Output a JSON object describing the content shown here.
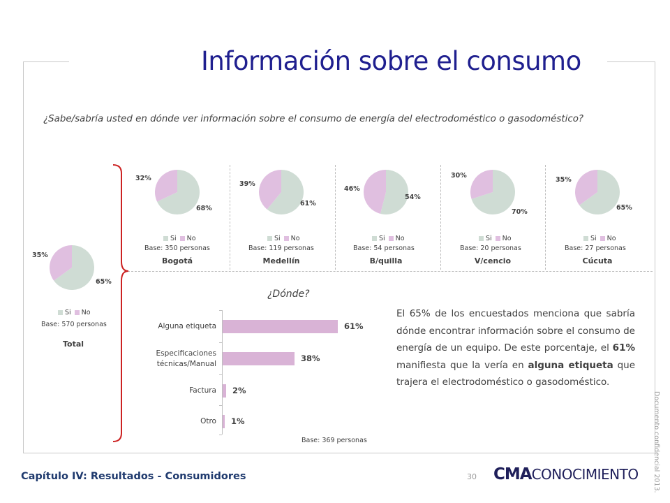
{
  "title": "Información sobre el consumo",
  "question": "¿Sabe/sabría usted en dónde ver información sobre el consumo de energía del electrodoméstico o gasodoméstico?",
  "colors": {
    "si": "#cfdcd4",
    "no": "#e0bfe0",
    "bar": "#d9b3d6",
    "title": "#1f1f8f",
    "bracket": "#cc2222"
  },
  "legend": {
    "si": "Si",
    "no": "No"
  },
  "pies": [
    {
      "si_pct": "68%",
      "no_pct": "32%",
      "si": 68,
      "no": 32,
      "base": "Base: 350 personas",
      "city": "Bogotá"
    },
    {
      "si_pct": "61%",
      "no_pct": "39%",
      "si": 61,
      "no": 39,
      "base": "Base: 119 personas",
      "city": "Medellín"
    },
    {
      "si_pct": "54%",
      "no_pct": "46%",
      "si": 54,
      "no": 46,
      "base": "Base: 54 personas",
      "city": "B/quilla"
    },
    {
      "si_pct": "70%",
      "no_pct": "30%",
      "si": 70,
      "no": 30,
      "base": "Base: 20 personas",
      "city": "V/cencio"
    },
    {
      "si_pct": "65%",
      "no_pct": "35%",
      "si": 65,
      "no": 35,
      "base": "Base: 27 personas",
      "city": "Cúcuta"
    }
  ],
  "total": {
    "si_pct": "65%",
    "no_pct": "35%",
    "si": 65,
    "no": 35,
    "base": "Base: 570 personas",
    "city": "Total"
  },
  "donde_title": "¿Dónde?",
  "chart_data": {
    "type": "bar",
    "orientation": "horizontal",
    "categories": [
      "Alguna etiqueta",
      "Especificaciones técnicas/Manual",
      "Factura",
      "Otro"
    ],
    "values": [
      61,
      38,
      2,
      1
    ],
    "labels": [
      "61%",
      "38%",
      "2%",
      "1%"
    ],
    "xlim": [
      0,
      100
    ],
    "base": "Base: 369 personas"
  },
  "paragraph": {
    "p1": "El 65% de los encuestados menciona que sabría dónde encontrar información sobre el consumo de energía de un equipo. De este porcentaje, el ",
    "b1": "61%",
    "p2": " manifiesta que la vería en ",
    "b2": "alguna etiqueta",
    "p3": " que trajera el electrodoméstico o gasodoméstico."
  },
  "footer": {
    "chapter": "Capítulo IV: Resultados - Consumidores",
    "page": "30",
    "logo_a": "CMA",
    "logo_b": "CONOCIMIENTO",
    "confidential": "Documento confidencial 2013."
  }
}
